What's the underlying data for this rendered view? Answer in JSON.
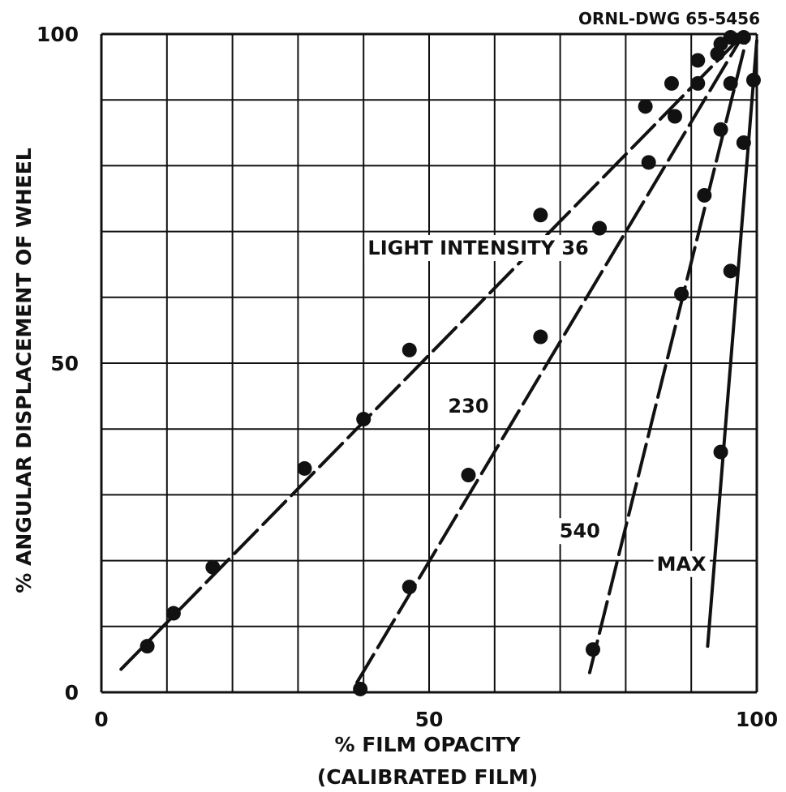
{
  "drawing_number": "ORNL-DWG 65-5456",
  "chart_data": {
    "type": "line",
    "title": "",
    "xlabel": "% FILM OPACITY",
    "xlabel_sub": "(CALIBRATED FILM)",
    "ylabel": "% ANGULAR DISPLACEMENT OF WHEEL",
    "xlim": [
      0,
      100
    ],
    "ylim": [
      0,
      100
    ],
    "x_ticks": [
      {
        "value": 0,
        "label": "0"
      },
      {
        "value": 50,
        "label": "50"
      },
      {
        "value": 100,
        "label": "100"
      }
    ],
    "y_ticks": [
      {
        "value": 0,
        "label": "0"
      },
      {
        "value": 50,
        "label": "50"
      },
      {
        "value": 100,
        "label": "100"
      }
    ],
    "grid": true,
    "grid_step": 10,
    "series": [
      {
        "name": "LIGHT INTENSITY 36",
        "dashed": true,
        "points": [
          [
            7,
            7
          ],
          [
            11,
            12
          ],
          [
            17,
            19
          ],
          [
            31,
            34
          ],
          [
            40,
            41.5
          ],
          [
            47,
            52
          ],
          [
            67,
            72.5
          ],
          [
            83,
            89
          ],
          [
            87,
            92.5
          ],
          [
            91,
            96
          ],
          [
            94.5,
            98.5
          ]
        ],
        "line": [
          [
            3,
            3.5
          ],
          [
            98,
            100
          ]
        ]
      },
      {
        "name": "230",
        "dashed": true,
        "points": [
          [
            39.5,
            0.5
          ],
          [
            47,
            16
          ],
          [
            56,
            33
          ],
          [
            67,
            54
          ],
          [
            76,
            70.5
          ],
          [
            83.5,
            80.5
          ],
          [
            87.5,
            87.5
          ],
          [
            91,
            92.5
          ],
          [
            94,
            97
          ],
          [
            96,
            99.5
          ]
        ],
        "line": [
          [
            39,
            1.5
          ],
          [
            98,
            100
          ]
        ]
      },
      {
        "name": "540",
        "dashed": true,
        "points": [
          [
            75,
            6.5
          ],
          [
            88.5,
            60.5
          ],
          [
            92,
            75.5
          ],
          [
            94.5,
            85.5
          ],
          [
            96,
            92.5
          ],
          [
            98,
            99.5
          ]
        ],
        "line": [
          [
            74.5,
            3
          ],
          [
            98.5,
            99.5
          ]
        ]
      },
      {
        "name": "MAX",
        "dashed": false,
        "points": [
          [
            94.5,
            36.5
          ],
          [
            96,
            64
          ],
          [
            98,
            83.5
          ],
          [
            99.5,
            93
          ]
        ],
        "line": [
          [
            92.5,
            7
          ],
          [
            100,
            99
          ]
        ]
      }
    ],
    "annotations": [
      {
        "text": "LIGHT INTENSITY 36",
        "x": 57.5,
        "y": 66.5
      },
      {
        "text": "230",
        "x": 56,
        "y": 42.5
      },
      {
        "text": "540",
        "x": 73,
        "y": 23.5
      },
      {
        "text": "MAX",
        "x": 88.5,
        "y": 18.5
      }
    ]
  }
}
